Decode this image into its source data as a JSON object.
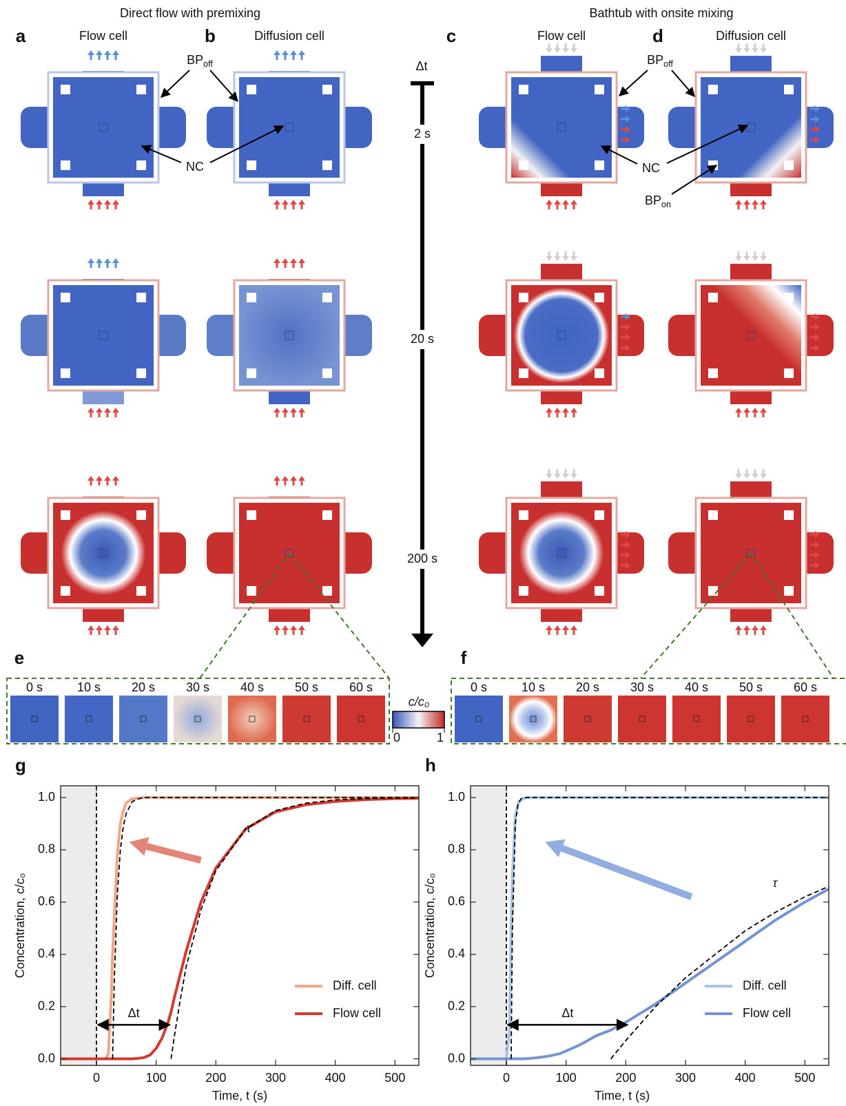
{
  "figure": {
    "headers": [
      "Direct flow with premixing",
      "Bathtub with onsite mixing"
    ],
    "panels": [
      {
        "letter": "a",
        "title": "Flow cell"
      },
      {
        "letter": "b",
        "title": "Diffusion cell"
      },
      {
        "letter": "c",
        "title": "Flow cell"
      },
      {
        "letter": "d",
        "title": "Diffusion cell"
      }
    ],
    "callouts": {
      "bp_off_left": {
        "text": "BP",
        "sub": "off"
      },
      "nc_left": "NC",
      "bp_off_right": {
        "text": "BP",
        "sub": "off"
      },
      "nc_right": "NC",
      "bp_on": {
        "text": "BP",
        "sub": "on"
      }
    },
    "timeline": {
      "label": "Δt",
      "times": [
        "2 s",
        "20 s",
        "200 s"
      ]
    },
    "strips": [
      {
        "letter": "e",
        "times": [
          "0 s",
          "10 s",
          "20 s",
          "30 s",
          "40 s",
          "50 s",
          "60 s"
        ]
      },
      {
        "letter": "f",
        "times": [
          "0 s",
          "10 s",
          "20 s",
          "30 s",
          "40 s",
          "50 s",
          "60 s"
        ]
      }
    ],
    "colorbar": {
      "label": "c/c₀",
      "ticks": [
        0,
        1
      ]
    }
  },
  "chart_data": [
    {
      "type": "line",
      "letter": "g",
      "xlabel": "Time, t (s)",
      "ylabel": "Concentration, c/c₀",
      "xlim": [
        -60,
        540
      ],
      "ylim": [
        -0.025,
        1.045
      ],
      "xticks": [
        0,
        100,
        200,
        300,
        400,
        500
      ],
      "yticks": [
        {
          "value": 0,
          "label": "0.0"
        },
        0.2,
        0.4,
        0.6,
        0.8,
        {
          "value": 1,
          "label": "1.0"
        }
      ],
      "legend": "lower right",
      "shade_until": 0,
      "vline": 0,
      "x": [
        -60,
        0,
        5,
        8,
        10,
        15,
        20,
        25,
        27,
        30,
        35,
        40,
        45,
        50,
        60,
        70,
        80,
        90,
        100,
        110,
        120,
        125,
        130,
        140,
        150,
        175,
        200,
        250,
        300,
        350,
        400,
        450,
        500,
        540
      ],
      "series": [
        {
          "name": "Diff. cell",
          "color": "#f4a582",
          "values": [
            0,
            0,
            0,
            0,
            0,
            0,
            0.02,
            0.25,
            0.4,
            0.55,
            0.78,
            0.9,
            0.95,
            0.98,
            0.995,
            0.998,
            1,
            1,
            1,
            1,
            1,
            1,
            1,
            1,
            1,
            1,
            1,
            1,
            1,
            1,
            1,
            1,
            1,
            1
          ]
        },
        {
          "name": "Flow cell",
          "color": "#d6382e",
          "values": [
            0,
            0,
            0,
            0,
            0,
            0,
            0,
            0,
            0,
            0,
            0,
            0,
            0,
            0,
            0,
            0.002,
            0.005,
            0.015,
            0.04,
            0.08,
            0.14,
            0.18,
            0.23,
            0.32,
            0.41,
            0.6,
            0.73,
            0.88,
            0.945,
            0.972,
            0.985,
            0.992,
            0.996,
            0.997
          ]
        }
      ],
      "fits": [
        {
          "color": "#000000",
          "values": [
            null,
            null,
            null,
            null,
            null,
            null,
            null,
            null,
            0,
            0.31,
            0.63,
            0.8,
            0.89,
            0.94,
            0.984,
            0.995,
            1,
            1,
            1,
            1,
            1,
            1,
            1,
            1,
            1,
            1,
            1,
            1,
            1,
            1,
            1,
            1,
            1,
            1
          ]
        },
        {
          "color": "#000000",
          "values": [
            null,
            null,
            null,
            null,
            null,
            null,
            null,
            null,
            null,
            null,
            null,
            null,
            null,
            null,
            null,
            null,
            null,
            null,
            null,
            null,
            null,
            0,
            0.08,
            0.22,
            0.35,
            0.57,
            0.72,
            0.88,
            0.95,
            0.978,
            0.991,
            0.996,
            0.998,
            0.999
          ]
        }
      ],
      "delta": {
        "label": "Δt",
        "from": 0,
        "to": 125,
        "y": 0.13
      },
      "tau": {
        "label": "τ",
        "x": 255,
        "y": 0.88
      },
      "arrow": {
        "from": [
          175,
          0.76
        ],
        "to": [
          55,
          0.83
        ],
        "color": "#e07060"
      }
    },
    {
      "type": "line",
      "letter": "h",
      "xlabel": "Time, t (s)",
      "ylabel": "Concentration, c/c₀",
      "xlim": [
        -60,
        540
      ],
      "ylim": [
        -0.025,
        1.045
      ],
      "xticks": [
        0,
        100,
        200,
        300,
        400,
        500
      ],
      "yticks": [
        {
          "value": 0,
          "label": "0.0"
        },
        0.2,
        0.4,
        0.6,
        0.8,
        {
          "value": 1,
          "label": "1.0"
        }
      ],
      "legend": "lower right",
      "shade_until": 0,
      "vline": 0,
      "x": [
        -60,
        0,
        5,
        8,
        10,
        15,
        20,
        25,
        27,
        30,
        35,
        40,
        45,
        50,
        60,
        70,
        80,
        90,
        100,
        110,
        120,
        125,
        130,
        140,
        150,
        175,
        200,
        250,
        300,
        350,
        400,
        450,
        500,
        540
      ],
      "series": [
        {
          "name": "Diff. cell",
          "color": "#a6c4ea",
          "values": [
            0,
            0,
            0.1,
            0.5,
            0.7,
            0.93,
            0.98,
            0.99,
            0.995,
            0.997,
            1,
            1,
            1,
            1,
            1,
            1,
            1,
            1,
            1,
            1,
            1,
            1,
            1,
            1,
            1,
            1,
            1,
            1,
            1,
            1,
            1,
            1,
            1,
            1
          ]
        },
        {
          "name": "Flow cell",
          "color": "#7294d4",
          "values": [
            0,
            0,
            0,
            0,
            0,
            0,
            0,
            0,
            0,
            0,
            0.001,
            0.002,
            0.003,
            0.004,
            0.007,
            0.01,
            0.015,
            0.02,
            0.03,
            0.04,
            0.05,
            0.056,
            0.062,
            0.075,
            0.088,
            0.11,
            0.14,
            0.21,
            0.29,
            0.37,
            0.45,
            0.53,
            0.6,
            0.65
          ]
        }
      ],
      "fits": [
        {
          "color": "#000000",
          "values": [
            null,
            null,
            null,
            0,
            0.49,
            0.9,
            0.98,
            0.996,
            0.998,
            0.999,
            1,
            1,
            1,
            1,
            1,
            1,
            1,
            1,
            1,
            1,
            1,
            1,
            1,
            1,
            1,
            1,
            1,
            1,
            1,
            1,
            1,
            1,
            1,
            1
          ]
        },
        {
          "color": "#000000",
          "values": [
            null,
            null,
            null,
            null,
            null,
            null,
            null,
            null,
            null,
            null,
            null,
            null,
            null,
            null,
            null,
            null,
            null,
            null,
            null,
            null,
            null,
            null,
            null,
            null,
            null,
            0,
            0.07,
            0.2,
            0.31,
            0.4,
            0.49,
            0.56,
            0.62,
            0.66
          ]
        }
      ],
      "delta": {
        "label": "Δt",
        "from": 0,
        "to": 205,
        "y": 0.13
      },
      "tau": {
        "label": "τ",
        "x": 450,
        "y": 0.67
      },
      "arrow": {
        "from": [
          310,
          0.62
        ],
        "to": [
          65,
          0.83
        ],
        "color": "#7f9fdc"
      }
    }
  ]
}
